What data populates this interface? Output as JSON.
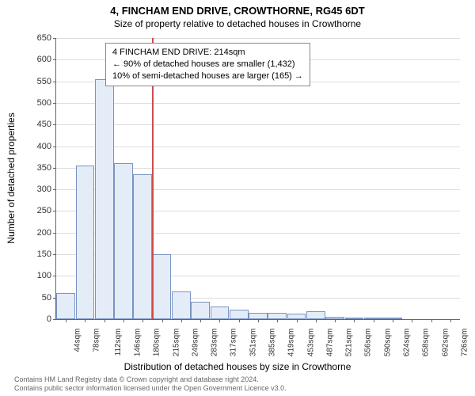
{
  "title": "4, FINCHAM END DRIVE, CROWTHORNE, RG45 6DT",
  "subtitle": "Size of property relative to detached houses in Crowthorne",
  "y_axis_label": "Number of detached properties",
  "x_axis_label": "Distribution of detached houses by size in Crowthorne",
  "chart": {
    "type": "histogram",
    "ylim": [
      0,
      650
    ],
    "ytick_step": 50,
    "bar_fill": "#e4ecf7",
    "bar_stroke": "#7a94c2",
    "grid_color": "#dddddd",
    "axis_color": "#666666",
    "marker_color": "#c94f4f",
    "categories": [
      "44sqm",
      "78sqm",
      "112sqm",
      "146sqm",
      "180sqm",
      "215sqm",
      "249sqm",
      "283sqm",
      "317sqm",
      "351sqm",
      "385sqm",
      "419sqm",
      "453sqm",
      "487sqm",
      "521sqm",
      "556sqm",
      "590sqm",
      "624sqm",
      "658sqm",
      "692sqm",
      "726sqm"
    ],
    "values": [
      60,
      355,
      555,
      360,
      335,
      150,
      65,
      40,
      30,
      22,
      15,
      15,
      12,
      18,
      6,
      3,
      2,
      1,
      0,
      0,
      0
    ],
    "marker_index": 5
  },
  "info": {
    "line1": "4 FINCHAM END DRIVE: 214sqm",
    "line2": "← 90% of detached houses are smaller (1,432)",
    "line3": "10% of semi-detached houses are larger (165) →"
  },
  "footer": {
    "line1": "Contains HM Land Registry data © Crown copyright and database right 2024.",
    "line2": "Contains public sector information licensed under the Open Government Licence v3.0."
  }
}
